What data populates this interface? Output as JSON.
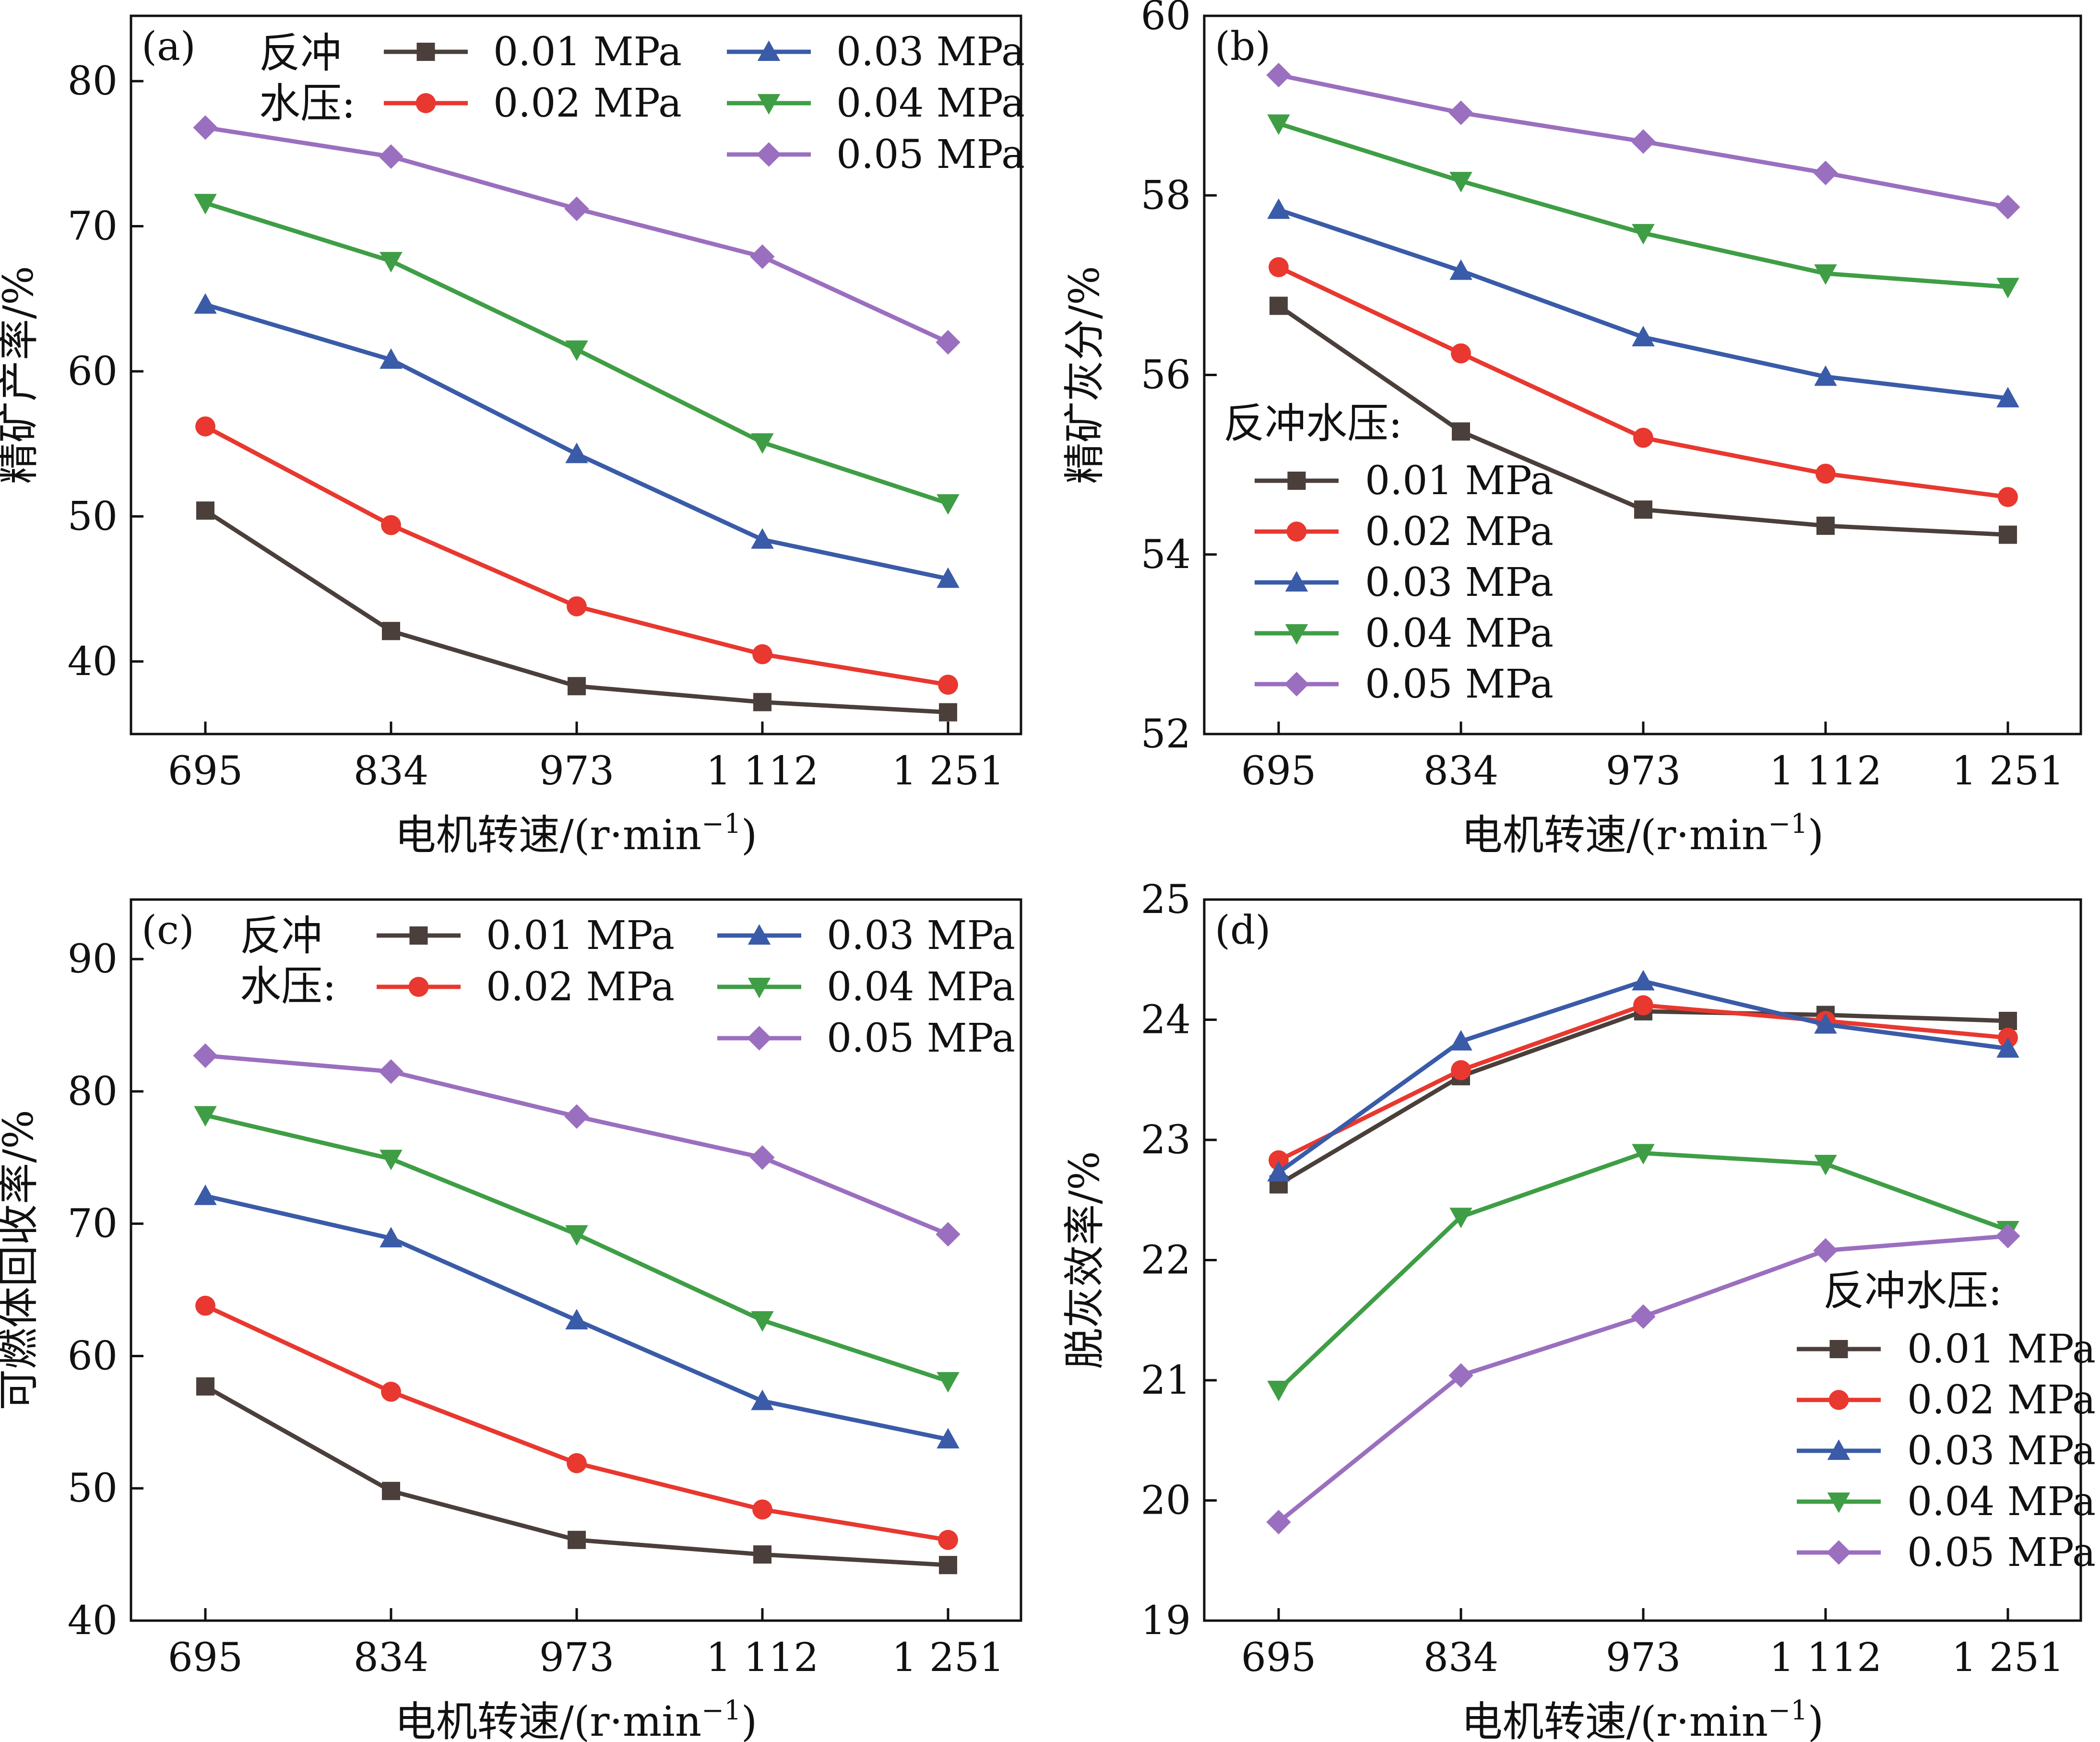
{
  "figure": {
    "x_categories": [
      "695",
      "834",
      "973",
      "1 112",
      "1 251"
    ],
    "x_label": "电机转速/(r·min",
    "x_label_sup": "−1",
    "x_label_close": ")",
    "series_style": [
      {
        "name": "0.01 MPa",
        "color": "#4a3f3a",
        "marker": "square"
      },
      {
        "name": "0.02 MPa",
        "color": "#e8382f",
        "marker": "circle"
      },
      {
        "name": "0.03 MPa",
        "color": "#3a5ba8",
        "marker": "triangle-up"
      },
      {
        "name": "0.04 MPa",
        "color": "#3f9e45",
        "marker": "triangle-down"
      },
      {
        "name": "0.05 MPa",
        "color": "#9b6fbf",
        "marker": "diamond"
      }
    ]
  },
  "chart_data": [
    {
      "type": "line",
      "panel_label": "(a)",
      "ylabel": "精矿产率/%",
      "ylim": [
        35,
        84.5
      ],
      "yticks": [
        40,
        50,
        60,
        70,
        80
      ],
      "categories": [
        "695",
        "834",
        "973",
        "1 112",
        "1 251"
      ],
      "legend_title_lines": [
        "反冲",
        "水压:"
      ],
      "legend_placement": "top",
      "series": [
        {
          "name": "0.01 MPa",
          "values": [
            50.4,
            42.1,
            38.3,
            37.2,
            36.5
          ]
        },
        {
          "name": "0.02 MPa",
          "values": [
            56.2,
            49.4,
            43.8,
            40.5,
            38.4
          ]
        },
        {
          "name": "0.03 MPa",
          "values": [
            64.6,
            60.8,
            54.3,
            48.4,
            45.7
          ]
        },
        {
          "name": "0.04 MPa",
          "values": [
            71.6,
            67.6,
            61.5,
            55.1,
            50.9
          ]
        },
        {
          "name": "0.05 MPa",
          "values": [
            76.8,
            74.8,
            71.2,
            67.9,
            62.0
          ]
        }
      ]
    },
    {
      "type": "line",
      "panel_label": "(b)",
      "ylabel": "精矿灰分/%",
      "ylim": [
        52,
        60
      ],
      "yticks": [
        52,
        54,
        56,
        58,
        60
      ],
      "categories": [
        "695",
        "834",
        "973",
        "1 112",
        "1 251"
      ],
      "legend_title_lines": [
        "反冲水压:"
      ],
      "legend_placement": "left",
      "series": [
        {
          "name": "0.01 MPa",
          "values": [
            56.77,
            55.37,
            54.5,
            54.32,
            54.22
          ]
        },
        {
          "name": "0.02 MPa",
          "values": [
            57.2,
            56.24,
            55.3,
            54.9,
            54.64
          ]
        },
        {
          "name": "0.03 MPa",
          "values": [
            57.84,
            57.16,
            56.42,
            55.98,
            55.74
          ]
        },
        {
          "name": "0.04 MPa",
          "values": [
            58.8,
            58.16,
            57.58,
            57.13,
            56.98
          ]
        },
        {
          "name": "0.05 MPa",
          "values": [
            59.34,
            58.92,
            58.6,
            58.25,
            57.87
          ]
        }
      ]
    },
    {
      "type": "line",
      "panel_label": "(c)",
      "ylabel": "可燃体回收率/%",
      "ylim": [
        40,
        94.5
      ],
      "yticks": [
        40,
        50,
        60,
        70,
        80,
        90
      ],
      "categories": [
        "695",
        "834",
        "973",
        "1 112",
        "1 251"
      ],
      "legend_title_lines": [
        "反冲",
        "水压:"
      ],
      "legend_placement": "top",
      "series": [
        {
          "name": "0.01 MPa",
          "values": [
            57.7,
            49.8,
            46.1,
            45.0,
            44.2
          ]
        },
        {
          "name": "0.02 MPa",
          "values": [
            63.8,
            57.3,
            51.9,
            48.4,
            46.1
          ]
        },
        {
          "name": "0.03 MPa",
          "values": [
            72.1,
            68.9,
            62.7,
            56.6,
            53.7
          ]
        },
        {
          "name": "0.04 MPa",
          "values": [
            78.2,
            74.9,
            69.2,
            62.7,
            58.1
          ]
        },
        {
          "name": "0.05 MPa",
          "values": [
            82.7,
            81.5,
            78.1,
            75.0,
            69.2
          ]
        }
      ]
    },
    {
      "type": "line",
      "panel_label": "(d)",
      "ylabel": "脱灰效率/%",
      "ylim": [
        19,
        25
      ],
      "yticks": [
        19,
        20,
        21,
        22,
        23,
        24,
        25
      ],
      "categories": [
        "695",
        "834",
        "973",
        "1 112",
        "1 251"
      ],
      "legend_title_lines": [
        "反冲水压:"
      ],
      "legend_placement": "bottom-right",
      "series": [
        {
          "name": "0.01 MPa",
          "values": [
            22.63,
            23.53,
            24.07,
            24.04,
            23.99
          ]
        },
        {
          "name": "0.02 MPa",
          "values": [
            22.83,
            23.58,
            24.12,
            23.99,
            23.85
          ]
        },
        {
          "name": "0.03 MPa",
          "values": [
            22.73,
            23.82,
            24.32,
            23.96,
            23.76
          ]
        },
        {
          "name": "0.04 MPa",
          "values": [
            20.92,
            22.36,
            22.89,
            22.8,
            22.25
          ]
        },
        {
          "name": "0.05 MPa",
          "values": [
            19.82,
            21.04,
            21.53,
            22.08,
            22.2
          ]
        }
      ]
    }
  ]
}
